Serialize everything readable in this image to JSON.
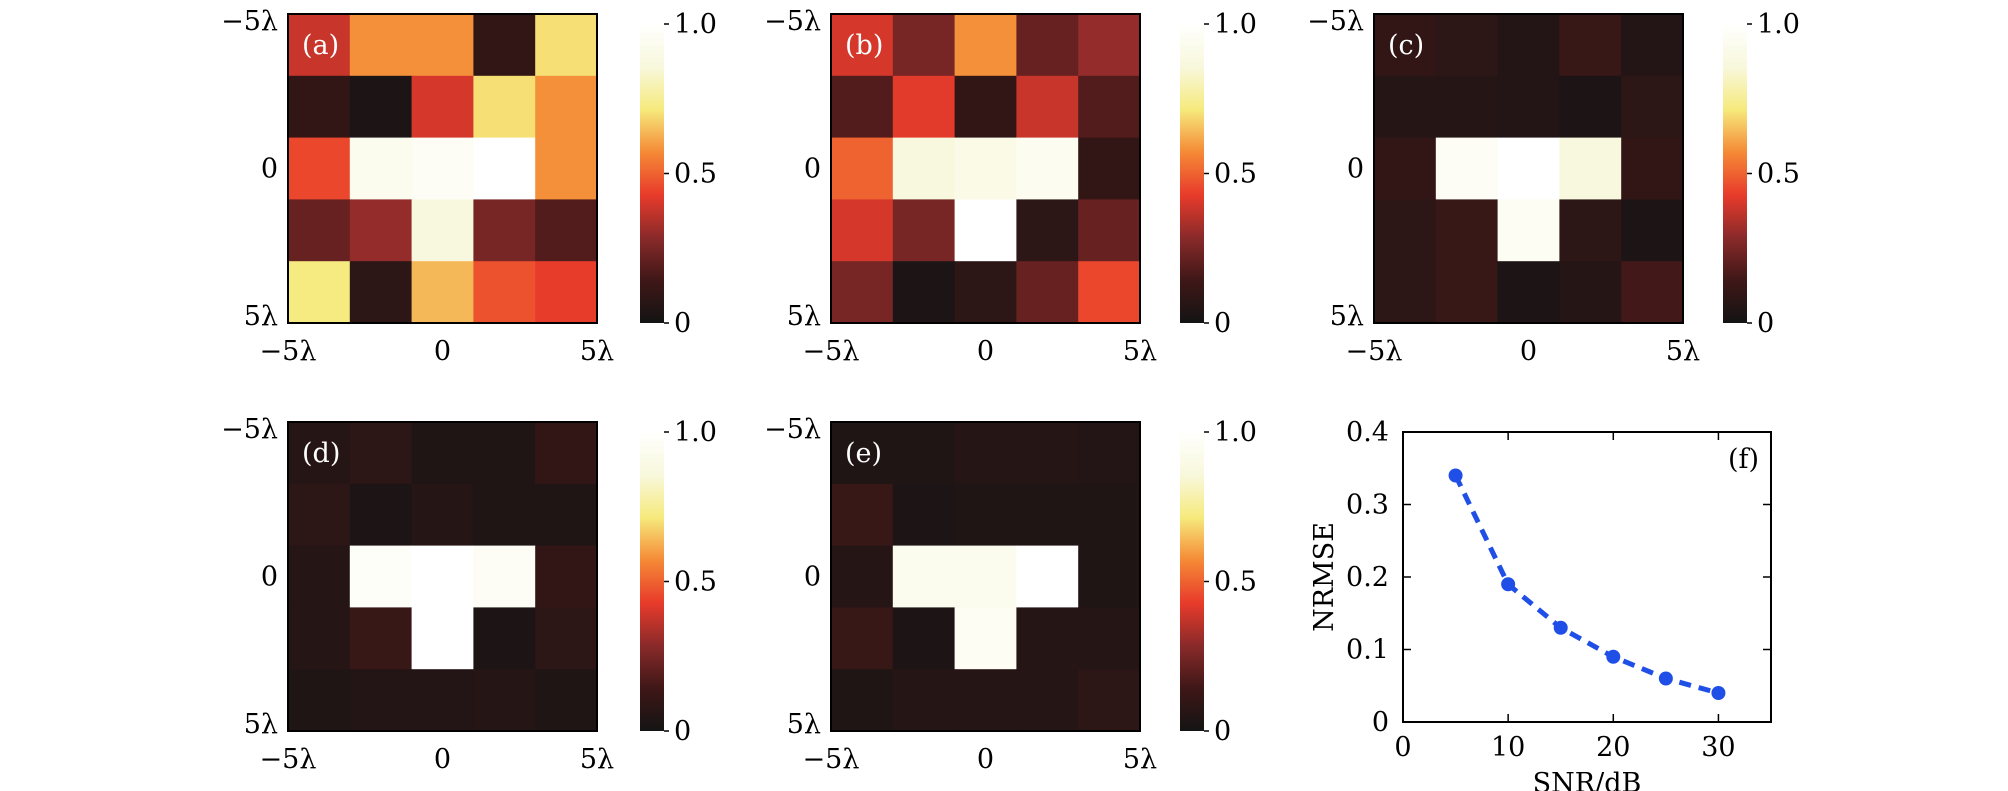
{
  "colormap": {
    "name": "hot",
    "stops": [
      "#141414",
      "#3f1717",
      "#8a2a2a",
      "#e83b2b",
      "#f58a36",
      "#f6ea7d",
      "#f8f8dd",
      "#ffffff"
    ]
  },
  "chart_data": [
    {
      "type": "heatmap",
      "panel": "(a)",
      "x_ticks": [
        "−5λ",
        "0",
        "5λ"
      ],
      "y_ticks": [
        "−5λ",
        "0",
        "5λ"
      ],
      "colorbar_ticks": [
        "1.0",
        "0.5",
        "0"
      ],
      "zlim": [
        0,
        1
      ],
      "values": [
        [
          0.38,
          0.58,
          0.58,
          0.1,
          0.7
        ],
        [
          0.1,
          0.03,
          0.4,
          0.7,
          0.58
        ],
        [
          0.45,
          0.93,
          0.96,
          1.0,
          0.58
        ],
        [
          0.22,
          0.3,
          0.86,
          0.25,
          0.18
        ],
        [
          0.72,
          0.08,
          0.64,
          0.47,
          0.43
        ]
      ]
    },
    {
      "type": "heatmap",
      "panel": "(b)",
      "x_ticks": [
        "−5λ",
        "0",
        "5λ"
      ],
      "y_ticks": [
        "−5λ",
        "0",
        "5λ"
      ],
      "colorbar_ticks": [
        "1.0",
        "0.5",
        "0"
      ],
      "zlim": [
        0,
        1
      ],
      "values": [
        [
          0.4,
          0.25,
          0.58,
          0.22,
          0.3
        ],
        [
          0.18,
          0.42,
          0.1,
          0.38,
          0.18
        ],
        [
          0.5,
          0.86,
          0.9,
          0.94,
          0.1
        ],
        [
          0.4,
          0.25,
          1.0,
          0.08,
          0.22
        ],
        [
          0.25,
          0.03,
          0.08,
          0.22,
          0.45
        ]
      ]
    },
    {
      "type": "heatmap",
      "panel": "(c)",
      "x_ticks": [
        "−5λ",
        "0",
        "5λ"
      ],
      "y_ticks": [
        "−5λ",
        "0",
        "5λ"
      ],
      "colorbar_ticks": [
        "1.0",
        "0.5",
        "0"
      ],
      "zlim": [
        0,
        1
      ],
      "values": [
        [
          0.1,
          0.08,
          0.05,
          0.12,
          0.05
        ],
        [
          0.06,
          0.06,
          0.05,
          0.03,
          0.08
        ],
        [
          0.1,
          0.96,
          1.0,
          0.86,
          0.1
        ],
        [
          0.08,
          0.12,
          0.95,
          0.08,
          0.03
        ],
        [
          0.08,
          0.12,
          0.03,
          0.06,
          0.15
        ]
      ]
    },
    {
      "type": "heatmap",
      "panel": "(d)",
      "x_ticks": [
        "−5λ",
        "0",
        "5λ"
      ],
      "y_ticks": [
        "−5λ",
        "0",
        "5λ"
      ],
      "colorbar_ticks": [
        "1.0",
        "0.5",
        "0"
      ],
      "zlim": [
        0,
        1
      ],
      "values": [
        [
          0.06,
          0.08,
          0.04,
          0.04,
          0.1
        ],
        [
          0.08,
          0.03,
          0.06,
          0.04,
          0.04
        ],
        [
          0.06,
          0.97,
          1.0,
          0.96,
          0.1
        ],
        [
          0.06,
          0.12,
          1.0,
          0.03,
          0.08
        ],
        [
          0.04,
          0.05,
          0.05,
          0.06,
          0.04
        ]
      ]
    },
    {
      "type": "heatmap",
      "panel": "(e)",
      "x_ticks": [
        "−5λ",
        "0",
        "5λ"
      ],
      "y_ticks": [
        "−5λ",
        "0",
        "5λ"
      ],
      "colorbar_ticks": [
        "1.0",
        "0.5",
        "0"
      ],
      "zlim": [
        0,
        1
      ],
      "values": [
        [
          0.04,
          0.04,
          0.06,
          0.06,
          0.05
        ],
        [
          0.12,
          0.03,
          0.04,
          0.04,
          0.04
        ],
        [
          0.06,
          0.93,
          0.93,
          1.0,
          0.04
        ],
        [
          0.12,
          0.03,
          0.95,
          0.06,
          0.06
        ],
        [
          0.04,
          0.06,
          0.06,
          0.06,
          0.08
        ]
      ]
    },
    {
      "type": "line",
      "panel": "(f)",
      "xlabel": "SNR/dB",
      "ylabel": "NRMSE",
      "xlim": [
        0,
        35
      ],
      "ylim": [
        0,
        0.4
      ],
      "x_ticks": [
        0,
        10,
        20,
        30
      ],
      "y_ticks": [
        0,
        0.1,
        0.2,
        0.3,
        0.4
      ],
      "line_style": "dashed",
      "marker": "circle",
      "color": "#1f4fe6",
      "x": [
        5,
        10,
        15,
        20,
        25,
        30
      ],
      "y": [
        0.34,
        0.19,
        0.13,
        0.09,
        0.06,
        0.04
      ]
    }
  ]
}
